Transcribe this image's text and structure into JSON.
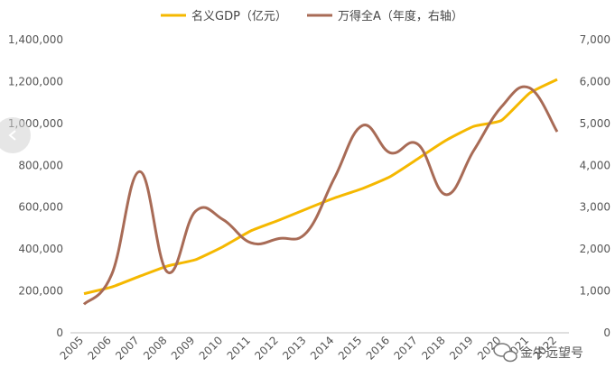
{
  "chart_data": {
    "type": "line",
    "title": "",
    "xlabel": "",
    "ylabel": "",
    "categories": [
      "2005",
      "2006",
      "2007",
      "2008",
      "2009",
      "2010",
      "2011",
      "2012",
      "2013",
      "2014",
      "2015",
      "2016",
      "2017",
      "2018",
      "2019",
      "2020",
      "2021",
      "2022"
    ],
    "y_left": {
      "lim": [
        0,
        1400000
      ],
      "ticks": [
        "0",
        "200,000",
        "400,000",
        "600,000",
        "800,000",
        "1,000,000",
        "1,200,000",
        "1,400,000"
      ]
    },
    "y_right": {
      "lim": [
        0,
        7000
      ],
      "ticks": [
        "0",
        "1,000",
        "2,000",
        "3,000",
        "4,000",
        "5,000",
        "6,000",
        "7,000"
      ]
    },
    "grid": false,
    "legend_position": "top-center",
    "series": [
      {
        "name": "名义GDP（亿元）",
        "axis": "left",
        "color": "#F5B800",
        "values": [
          187000,
          219000,
          270000,
          319000,
          349000,
          412000,
          487000,
          538000,
          592000,
          644000,
          689000,
          746000,
          832000,
          919000,
          986000,
          1015000,
          1144000,
          1210000
        ]
      },
      {
        "name": "万得全A（年度，右轴）",
        "axis": "right",
        "color": "#A86B56",
        "values": [
          680,
          1400,
          3850,
          1450,
          2900,
          2700,
          2150,
          2250,
          2400,
          3700,
          4950,
          4300,
          4500,
          3300,
          4350,
          5400,
          5850,
          4800
        ]
      }
    ]
  },
  "watermark": {
    "text": "金牛远望号",
    "icon": "wechat-icon"
  },
  "nav": {
    "icon": "chevron-left-icon"
  }
}
